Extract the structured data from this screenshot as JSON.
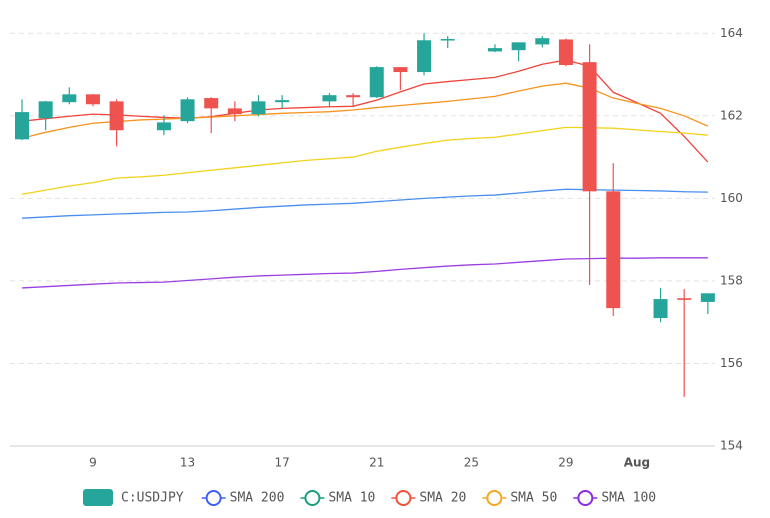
{
  "chart_data": {
    "type": "candlestick",
    "categories": [
      null,
      null,
      null,
      "9",
      null,
      null,
      null,
      "13",
      null,
      null,
      null,
      "17",
      null,
      null,
      null,
      "21",
      null,
      null,
      null,
      "25",
      null,
      null,
      null,
      "29",
      null,
      null,
      "Aug",
      null,
      null,
      null
    ],
    "candles": {
      "name": "C:USDJPY",
      "up_color": "#26a69a",
      "down_color": "#ef5350",
      "open": [
        161.43,
        161.94,
        162.33,
        162.52,
        162.35,
        null,
        161.65,
        161.87,
        162.43,
        162.18,
        162.04,
        162.33,
        null,
        162.35,
        162.5,
        162.45,
        163.18,
        163.06,
        163.83,
        null,
        163.56,
        163.59,
        163.73,
        163.85,
        163.3,
        160.17,
        null,
        157.1,
        157.58,
        157.49
      ],
      "high": [
        162.4,
        162.36,
        162.69,
        162.53,
        162.4,
        null,
        162.01,
        162.45,
        162.45,
        162.35,
        162.5,
        162.5,
        null,
        162.55,
        162.55,
        163.2,
        163.18,
        164.0,
        163.93,
        null,
        163.73,
        163.78,
        163.93,
        163.87,
        163.73,
        160.85,
        null,
        157.83,
        157.8,
        157.7
      ],
      "low": [
        161.41,
        161.65,
        162.28,
        162.23,
        161.26,
        null,
        161.53,
        161.82,
        161.58,
        161.87,
        161.99,
        162.18,
        null,
        162.23,
        162.23,
        162.43,
        162.62,
        162.98,
        163.64,
        null,
        163.54,
        163.32,
        163.66,
        163.2,
        157.9,
        157.15,
        null,
        157.0,
        155.19,
        157.2
      ],
      "close": [
        162.09,
        162.35,
        162.52,
        162.28,
        161.65,
        null,
        161.84,
        162.4,
        162.18,
        162.04,
        162.35,
        162.38,
        null,
        162.5,
        162.45,
        163.18,
        163.06,
        163.83,
        163.86,
        null,
        163.64,
        163.78,
        163.88,
        163.23,
        160.17,
        157.34,
        null,
        157.56,
        157.54,
        157.7
      ]
    },
    "series": [
      {
        "name": "SMA 200",
        "color": "#9b3fe0",
        "legend_color": "#3f5ff0",
        "values": [
          157.83,
          157.86,
          157.89,
          157.92,
          157.95,
          157.96,
          157.97,
          158.01,
          158.05,
          158.09,
          158.12,
          158.14,
          158.16,
          158.18,
          158.19,
          158.23,
          158.28,
          158.32,
          158.36,
          158.39,
          158.41,
          158.45,
          158.49,
          158.53,
          158.54,
          158.55,
          158.55,
          158.56,
          158.56,
          158.56
        ]
      },
      {
        "name": "SMA 10",
        "color": "#f0433a",
        "legend_color": "#1a9e7e",
        "values": [
          161.87,
          161.93,
          161.99,
          162.04,
          162.02,
          161.99,
          161.96,
          161.94,
          161.98,
          162.06,
          162.14,
          162.18,
          162.2,
          162.22,
          162.23,
          162.38,
          162.58,
          162.77,
          162.83,
          162.88,
          162.93,
          163.08,
          163.25,
          163.35,
          163.2,
          162.57,
          162.32,
          162.06,
          161.5,
          160.88
        ]
      },
      {
        "name": "SMA 20",
        "color": "#f7931e",
        "legend_color": "#f0533a",
        "values": [
          161.46,
          161.6,
          161.72,
          161.82,
          161.86,
          161.9,
          161.92,
          161.94,
          161.97,
          162.0,
          162.03,
          162.06,
          162.08,
          162.1,
          162.14,
          162.2,
          162.25,
          162.3,
          162.35,
          162.41,
          162.47,
          162.6,
          162.72,
          162.79,
          162.67,
          162.43,
          162.3,
          162.18,
          162.0,
          161.75
        ]
      },
      {
        "name": "SMA 50",
        "color": "#f2d21b",
        "legend_color": "#f5a623",
        "values": [
          160.1,
          160.2,
          160.3,
          160.38,
          160.49,
          160.52,
          160.56,
          160.62,
          160.68,
          160.74,
          160.8,
          160.86,
          160.92,
          160.96,
          161.0,
          161.14,
          161.24,
          161.33,
          161.41,
          161.45,
          161.48,
          161.56,
          161.64,
          161.72,
          161.71,
          161.7,
          161.66,
          161.62,
          161.58,
          161.53
        ]
      },
      {
        "name": "SMA 100",
        "color": "#4a8ff0",
        "legend_color": "#8a2be2",
        "values": [
          159.52,
          159.55,
          159.58,
          159.6,
          159.62,
          159.64,
          159.66,
          159.67,
          159.7,
          159.74,
          159.78,
          159.81,
          159.84,
          159.86,
          159.88,
          159.92,
          159.96,
          160.0,
          160.03,
          160.06,
          160.08,
          160.13,
          160.18,
          160.22,
          160.21,
          160.2,
          160.19,
          160.18,
          160.16,
          160.15
        ]
      }
    ],
    "ylim": [
      154,
      164.2
    ],
    "yticks": [
      154,
      156,
      158,
      160,
      162,
      164
    ],
    "grid": true
  }
}
